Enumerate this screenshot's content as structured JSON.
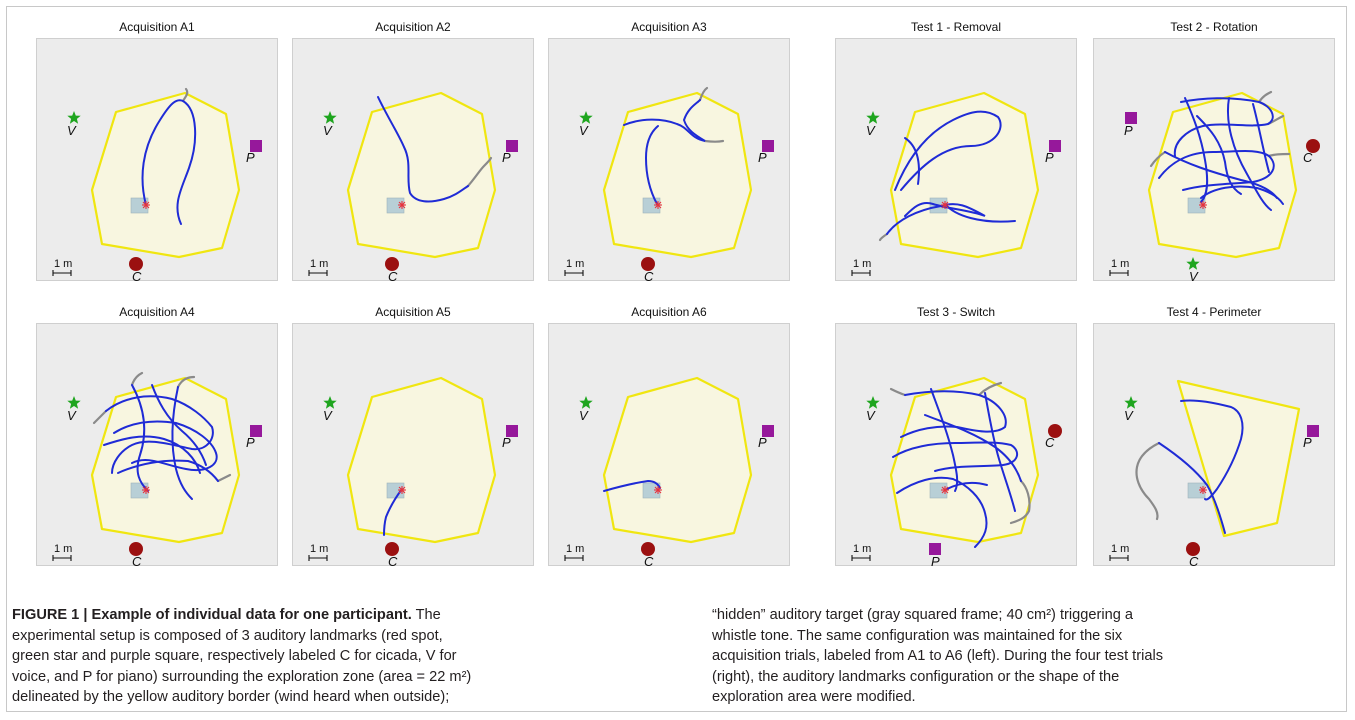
{
  "panels": [
    {
      "title": "Acquisition A1",
      "lm": {
        "V": "tl",
        "P": "r",
        "C": "b"
      },
      "hull": "std",
      "paths": "a1"
    },
    {
      "title": "Acquisition A2",
      "lm": {
        "V": "tl",
        "P": "r",
        "C": "b"
      },
      "hull": "std",
      "paths": "a2"
    },
    {
      "title": "Acquisition A3",
      "lm": {
        "V": "tl",
        "P": "r",
        "C": "b"
      },
      "hull": "std",
      "paths": "a3"
    },
    {
      "title": "Test 1 - Removal",
      "lm": {
        "V": "tl",
        "P": "r"
      },
      "hull": "std",
      "paths": "t1"
    },
    {
      "title": "Test 2 - Rotation",
      "lm": {
        "P": "tl",
        "C": "r",
        "V": "b"
      },
      "hull": "std",
      "paths": "t2"
    },
    {
      "title": "Acquisition A4",
      "lm": {
        "V": "tl",
        "P": "r",
        "C": "b"
      },
      "hull": "std",
      "paths": "a4"
    },
    {
      "title": "Acquisition A5",
      "lm": {
        "V": "tl",
        "P": "r",
        "C": "b"
      },
      "hull": "std",
      "paths": "a5"
    },
    {
      "title": "Acquisition A6",
      "lm": {
        "V": "tl",
        "P": "r",
        "C": "b"
      },
      "hull": "std",
      "paths": "a6"
    },
    {
      "title": "Test 3 - Switch",
      "lm": {
        "V": "tl",
        "C": "r",
        "P": "b"
      },
      "hull": "std",
      "paths": "t3"
    },
    {
      "title": "Test 4 - Perimeter",
      "lm": {
        "V": "tl",
        "P": "r",
        "C": "b"
      },
      "hull": "quad",
      "paths": "t4"
    }
  ],
  "scale_label": "1 m",
  "landmarks": {
    "C": {
      "label": "C",
      "color": "#9b1010",
      "icon": "circle"
    },
    "V": {
      "label": "V",
      "color": "#1ea51e",
      "icon": "star"
    },
    "P": {
      "label": "P",
      "color": "#96189b",
      "icon": "square"
    }
  },
  "colors": {
    "border": "#f0e610",
    "zone": "#f8f6e0",
    "path": "#1f2bd6",
    "outside_path": "#8a8a8a",
    "target": "#b8cfd6",
    "start": "#e8323c"
  },
  "caption": {
    "label": "FIGURE 1 | Example of individual data for one participant.",
    "left_line1": "The",
    "left_line2": "experimental setup is composed of 3 auditory landmarks (red spot,",
    "left_line3": "green star and purple square, respectively labeled C for cicada, V for",
    "left_line4": "voice, and P for piano) surrounding the exploration zone (area = 22 m²)",
    "left_line5": "delineated by the yellow auditory border (wind heard when outside);",
    "right_line1": "“hidden” auditory target (gray squared frame; 40 cm²) triggering a",
    "right_line2": "whistle tone. The same configuration was maintained for the six",
    "right_line3": "acquisition trials, labeled from A1 to A6 (left). During the four test trials",
    "right_line4": "(right), the auditory landmarks configuration or the shape of the",
    "right_line5": "exploration area were modified."
  }
}
